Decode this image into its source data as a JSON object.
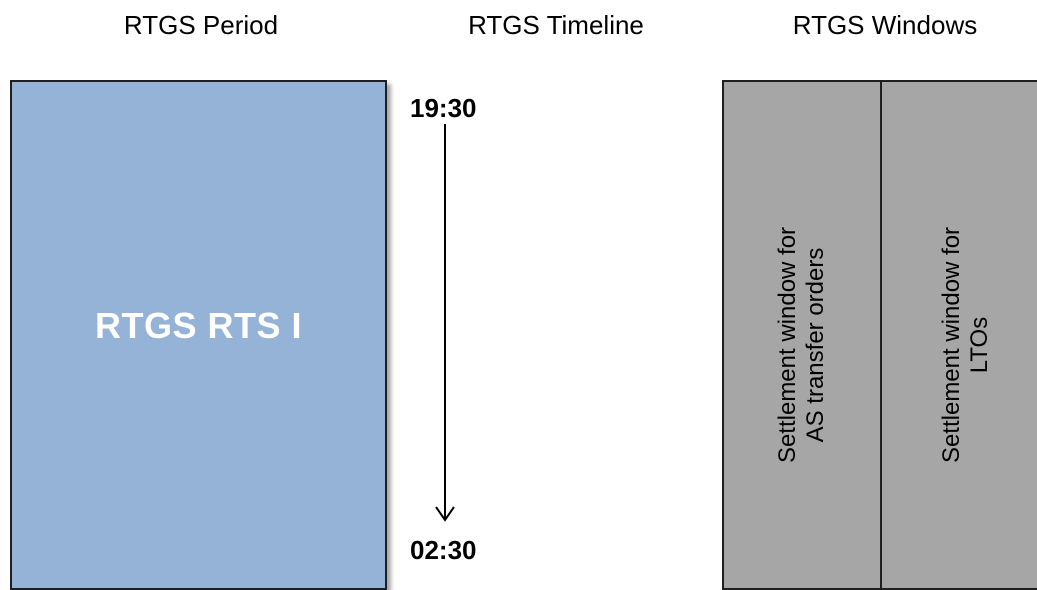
{
  "headers": {
    "period": "RTGS Period",
    "timeline": "RTGS Timeline",
    "windows": "RTGS Windows"
  },
  "period": {
    "label": "RTGS RTS I",
    "fill_color": "#95b3d7"
  },
  "timeline": {
    "start_time": "19:30",
    "end_time": "02:30"
  },
  "windows": {
    "fill_color": "#a6a6a6",
    "items": [
      {
        "line1": "Settlement window for",
        "line2": "AS transfer orders"
      },
      {
        "line1": "Settlement window for",
        "line2": "LTOs"
      }
    ]
  }
}
